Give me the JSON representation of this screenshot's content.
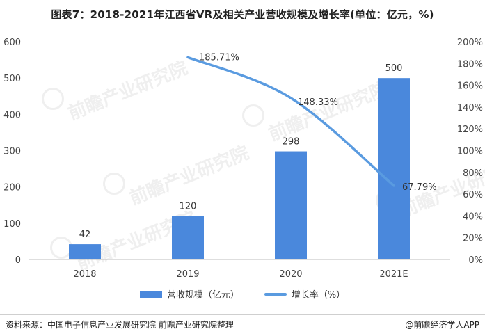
{
  "title": "图表7：2018-2021年江西省VR及相关产业营收规模及增长率(单位：亿元，%)",
  "footer": {
    "source": "资料来源：中国电子信息产业发展研究院 前瞻产业研究院整理",
    "brand": "@前瞻经济学人APP"
  },
  "watermark": "前瞻产业研究院",
  "colors": {
    "bar": "#4a88dc",
    "line": "#5a9be0",
    "axis": "#999999"
  },
  "chart_data": {
    "type": "bar+line",
    "categories": [
      "2018",
      "2019",
      "2020",
      "2021E"
    ],
    "series": [
      {
        "name": "营收规模（亿元）",
        "type": "bar",
        "axis": "left",
        "values": [
          42,
          120,
          298,
          500
        ],
        "labels": [
          "42",
          "120",
          "298",
          "500"
        ]
      },
      {
        "name": "增长率（%）",
        "type": "line",
        "axis": "right",
        "values": [
          null,
          185.71,
          148.33,
          67.79
        ],
        "labels": [
          "",
          "185.71%",
          "148.33%",
          "67.79%"
        ]
      }
    ],
    "y_left": {
      "min": 0,
      "max": 600,
      "ticks": [
        "0",
        "100",
        "200",
        "300",
        "400",
        "500",
        "600"
      ]
    },
    "y_right": {
      "min": 0,
      "max": 200,
      "ticks": [
        "0%",
        "20%",
        "40%",
        "60%",
        "80%",
        "100%",
        "120%",
        "140%",
        "160%",
        "180%",
        "200%"
      ]
    },
    "grid": false,
    "legend": "bottom"
  }
}
